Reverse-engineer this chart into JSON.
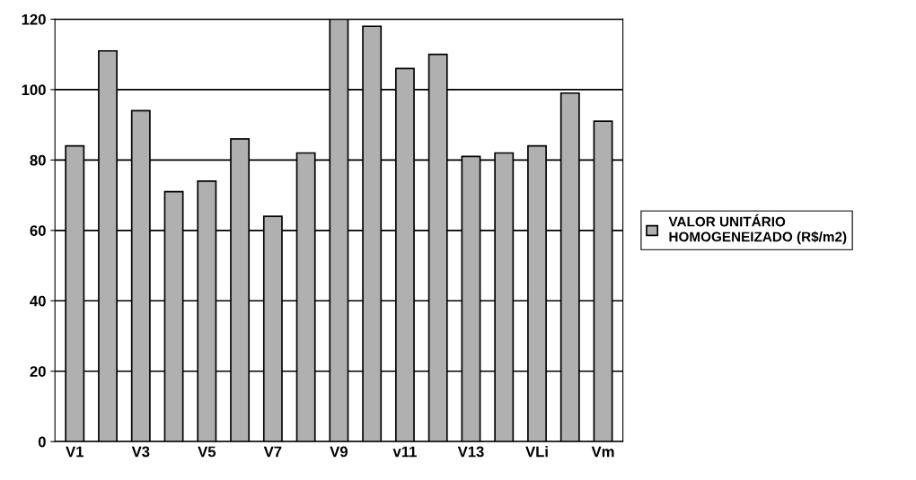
{
  "chart_data": {
    "type": "bar",
    "categories": [
      "V1",
      null,
      "V3",
      null,
      "V5",
      null,
      "V7",
      null,
      "V9",
      null,
      "v11",
      null,
      "V13",
      null,
      "VLi",
      null,
      "Vm"
    ],
    "series": [
      {
        "name": "VALOR UNITÁRIO\nHOMOGENEIZADO (R$/m2)",
        "color": "#b0b0b0",
        "values": [
          84,
          111,
          94,
          71,
          74,
          86,
          64,
          82,
          120,
          118,
          106,
          110,
          81,
          82,
          84,
          99,
          91
        ]
      }
    ],
    "ylim": [
      0,
      120
    ],
    "yticks": [
      0,
      20,
      40,
      60,
      80,
      100,
      120
    ],
    "grid": "y",
    "legend": "right"
  }
}
